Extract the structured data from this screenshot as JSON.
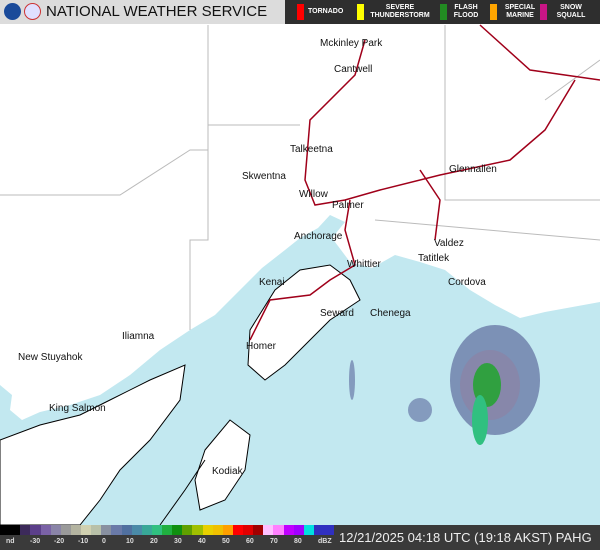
{
  "header": {
    "title": "NATIONAL WEATHER SERVICE",
    "logos": [
      "noaa-logo",
      "nws-logo"
    ]
  },
  "warnings": [
    {
      "label": "TORNADO",
      "color": "#ff0000"
    },
    {
      "label": "SEVERE THUNDERSTORM",
      "color": "#ffff00"
    },
    {
      "label": "FLASH FLOOD",
      "color": "#228b22"
    },
    {
      "label": "SPECIAL MARINE",
      "color": "#ffa500"
    },
    {
      "label": "SNOW SQUALL",
      "color": "#c71585"
    }
  ],
  "cities": [
    "Mckinley Park",
    "Cantwell",
    "Talkeetna",
    "Skwentna",
    "Glennallen",
    "Willow",
    "Palmer",
    "Anchorage",
    "Valdez",
    "Whittier",
    "Tatitlek",
    "Kenai",
    "Cordova",
    "Seward",
    "Chenega",
    "Iliamna",
    "Homer",
    "New Stuyahok",
    "King Salmon",
    "Kodiak"
  ],
  "legend": {
    "ticks": [
      "nd",
      "-30",
      "-20",
      "-10",
      "0",
      "10",
      "20",
      "30",
      "40",
      "50",
      "60",
      "70",
      "80",
      "dBZ"
    ],
    "colors": [
      "#000",
      "#000",
      "#3c2a5a",
      "#5b3f8a",
      "#7a62a6",
      "#8a84a8",
      "#9a9a9a",
      "#b4b4a0",
      "#d0d0b0",
      "#b8c0a8",
      "#8890a0",
      "#6a7aa8",
      "#5070a0",
      "#4a8aa8",
      "#38a898",
      "#30c080",
      "#20b040",
      "#109010",
      "#60a000",
      "#a0c000",
      "#e8d000",
      "#f0c000",
      "#ffa000",
      "#ff0000",
      "#e00000",
      "#a00000",
      "#ffc0ff",
      "#ff80ff",
      "#c000ff",
      "#a000ff",
      "#00e0e0",
      "#3030c0",
      "#3030c0"
    ]
  },
  "timestamp": "12/21/2025 04:18 UTC (19:18 AKST) PAHG"
}
